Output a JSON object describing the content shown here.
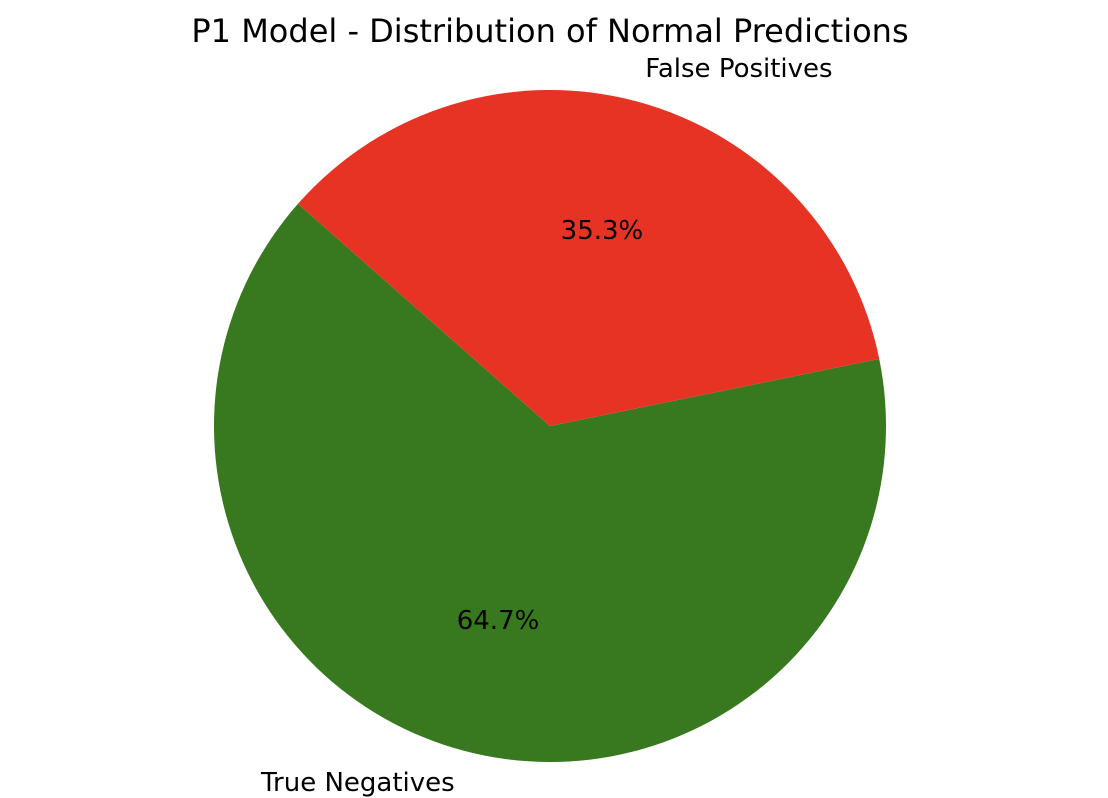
{
  "chart_data": {
    "type": "pie",
    "title": "P1 Model - Distribution of Normal Predictions",
    "slices": [
      {
        "label": "True Negatives",
        "value": 64.7,
        "pct_label": "64.7%",
        "color": "#38791f"
      },
      {
        "label": "False Positives",
        "value": 35.3,
        "pct_label": "35.3%",
        "color": "#e73323"
      }
    ],
    "legend": "none"
  }
}
